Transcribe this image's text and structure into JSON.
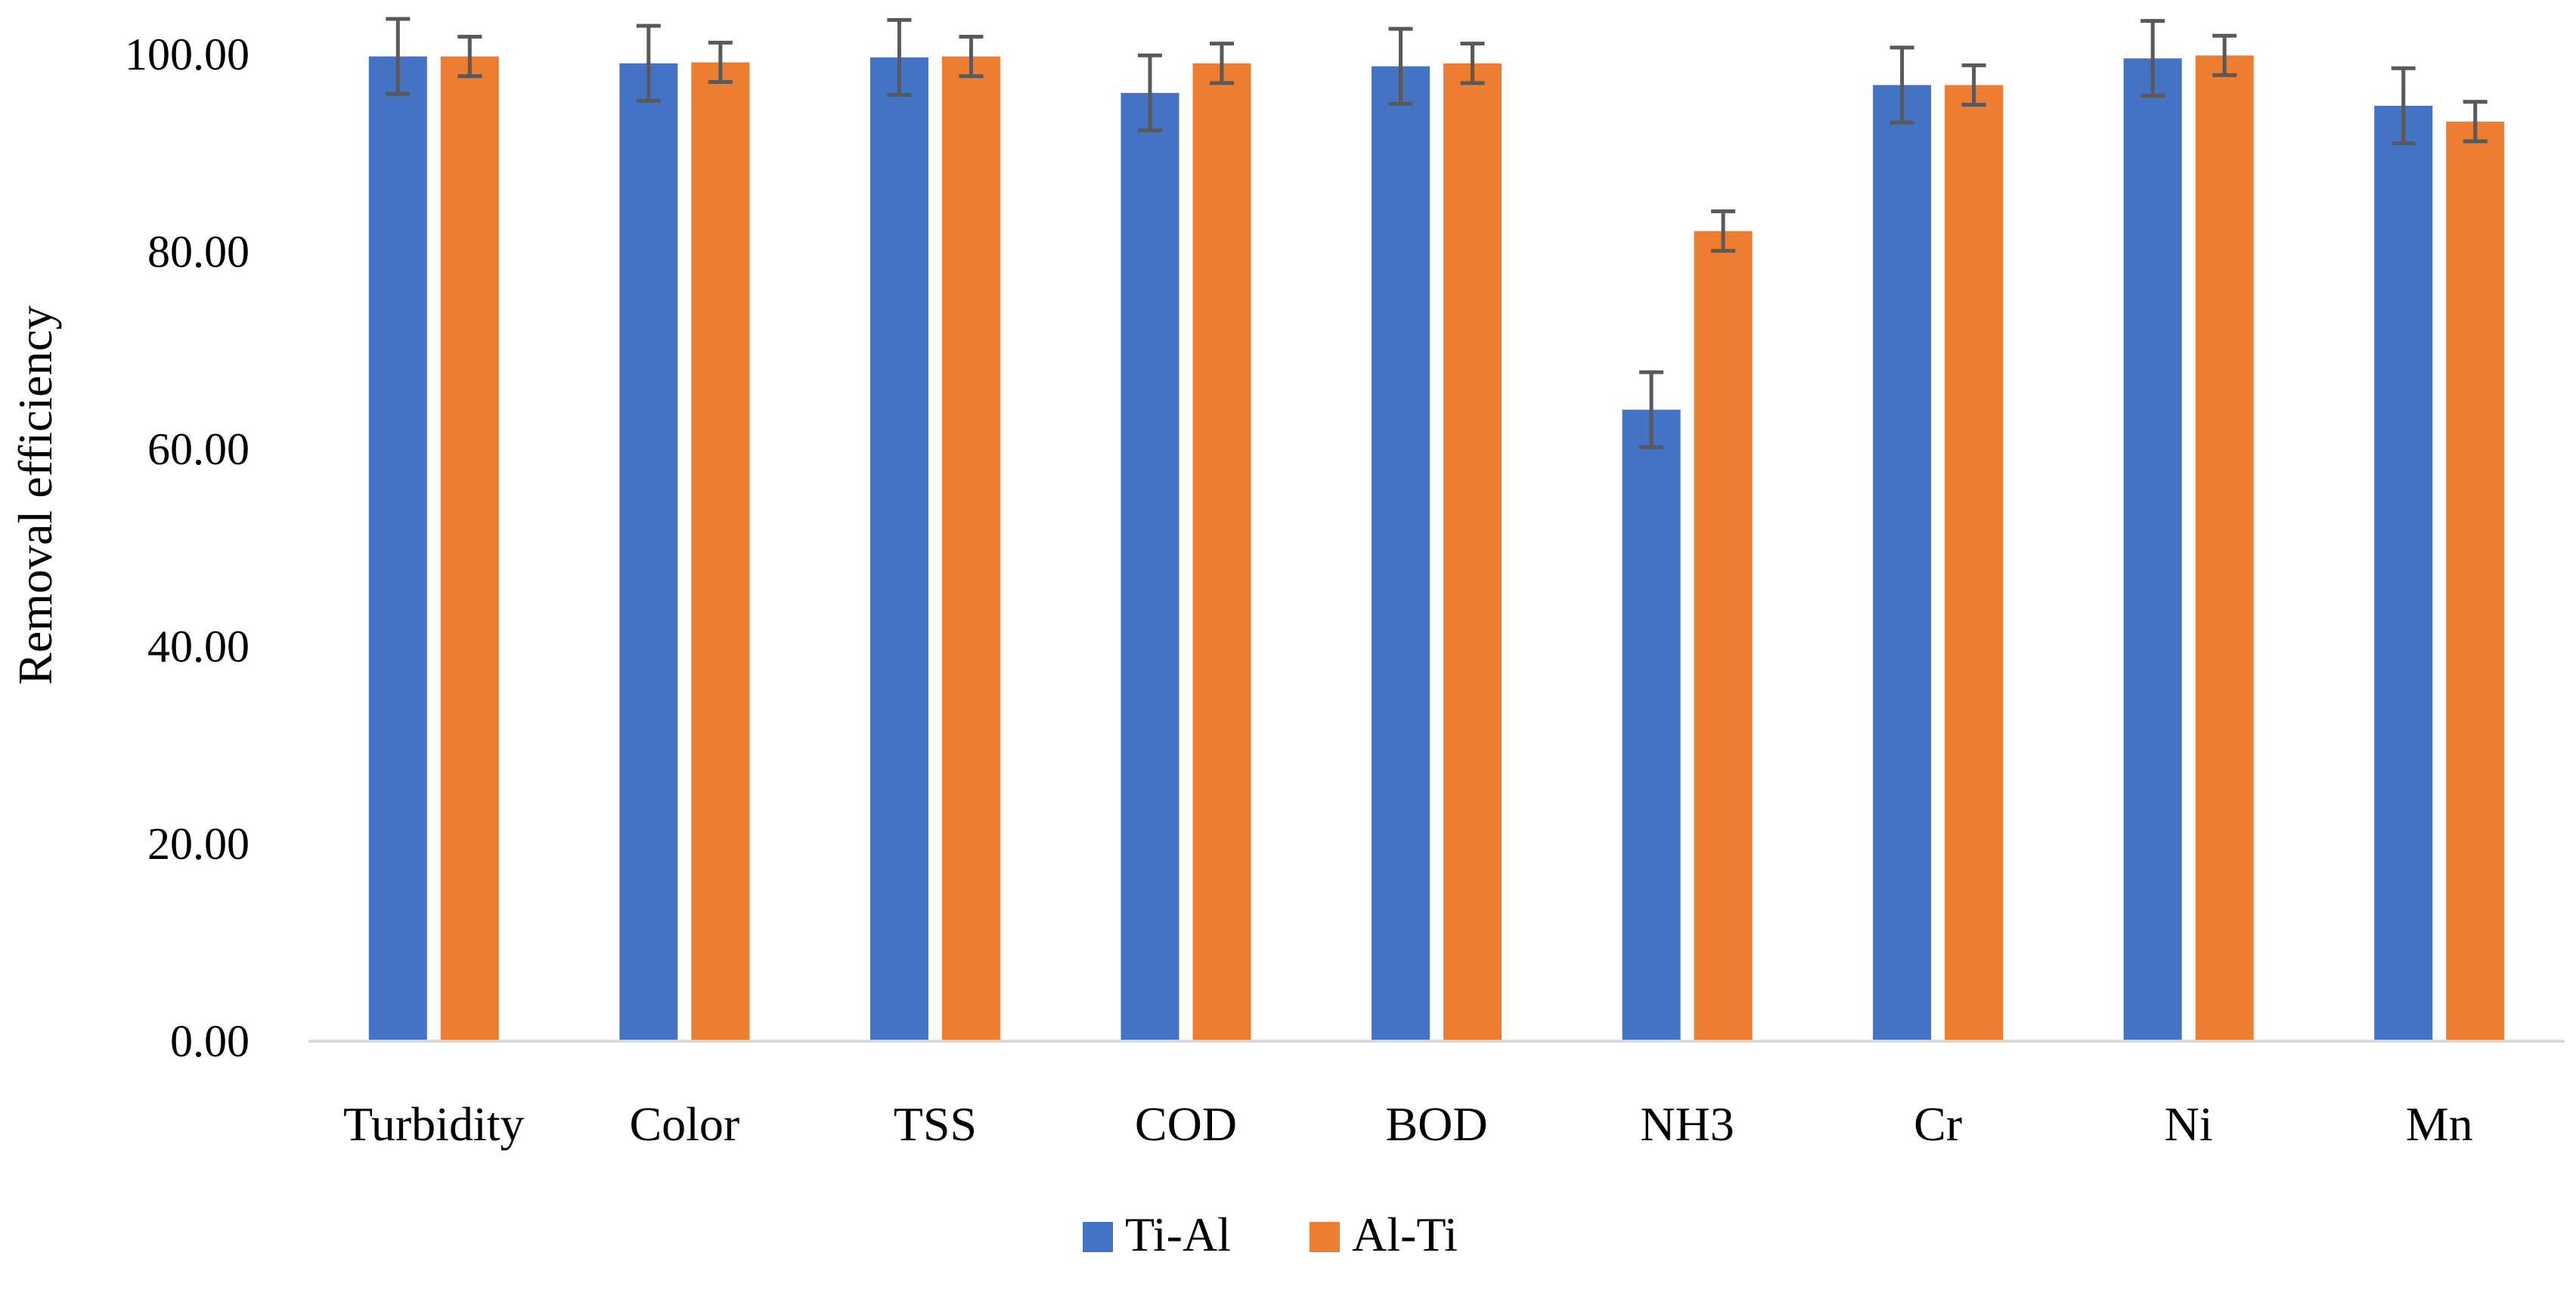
{
  "chart_data": {
    "type": "bar",
    "title": "",
    "xlabel": "",
    "ylabel": "Removal efficiency",
    "ylim": [
      0,
      100
    ],
    "yticks": [
      0,
      20,
      40,
      60,
      80,
      100
    ],
    "ytick_labels": [
      "0.00",
      "20.00",
      "40.00",
      "60.00",
      "80.00",
      "100.00"
    ],
    "grid": false,
    "legend_position": "bottom-center",
    "categories": [
      "Turbidity",
      "Color",
      "TSS",
      "COD",
      "BOD",
      "NH3",
      "Cr",
      "Ni",
      "Mn"
    ],
    "series": [
      {
        "name": "Ti-Al",
        "color": "#4472C4",
        "values": [
          99.8,
          99.1,
          99.7,
          96.1,
          98.8,
          64.0,
          96.9,
          99.6,
          94.8
        ],
        "errors": [
          3.8,
          3.8,
          3.8,
          3.8,
          3.8,
          3.8,
          3.8,
          3.8,
          3.8
        ]
      },
      {
        "name": "Al-Ti",
        "color": "#ED7D31",
        "values": [
          99.8,
          99.2,
          99.8,
          99.1,
          99.1,
          82.1,
          96.9,
          99.9,
          93.2
        ],
        "errors": [
          2.0,
          2.0,
          2.0,
          2.0,
          2.0,
          2.0,
          2.0,
          2.0,
          2.0
        ]
      }
    ],
    "error_bar_color": "#595959",
    "axis_color": "#D9D9D9"
  }
}
